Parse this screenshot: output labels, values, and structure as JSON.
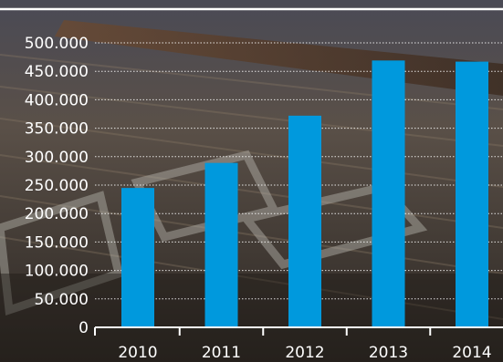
{
  "chart_data": {
    "type": "bar",
    "categories": [
      "2010",
      "2011",
      "2012",
      "2013",
      "2014"
    ],
    "values": [
      245000,
      289000,
      372000,
      469000,
      467000
    ],
    "y_tick_labels": [
      "0",
      "50.000",
      "100.000",
      "150.000",
      "200.000",
      "250.000",
      "300.000",
      "350.000",
      "400.000",
      "450.000",
      "500.000"
    ],
    "y_ticks": [
      0,
      50000,
      100000,
      150000,
      200000,
      250000,
      300000,
      350000,
      400000,
      450000,
      500000
    ],
    "ylim": [
      0,
      500000
    ],
    "grid": true,
    "bar_color": "#0099dd",
    "title": "",
    "xlabel": "",
    "ylabel": ""
  }
}
